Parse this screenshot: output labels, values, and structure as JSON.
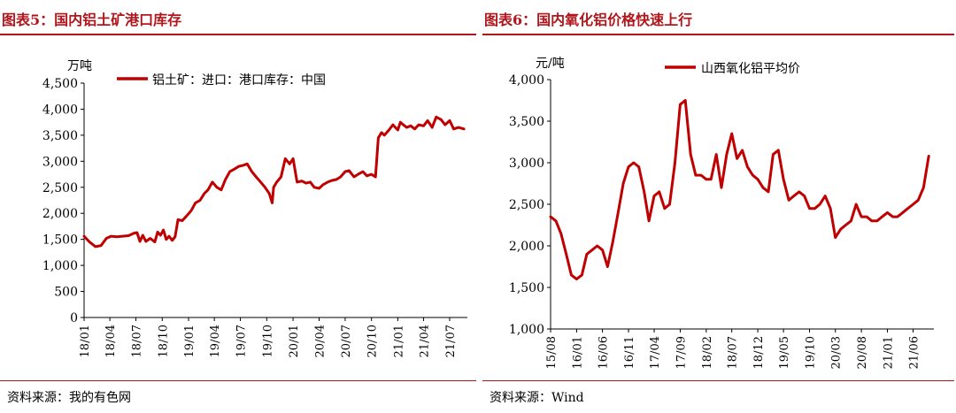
{
  "figures": [
    {
      "title": "图表5：国内铝土矿港口库存",
      "source": "资料来源：我的有色网",
      "chart_data": {
        "type": "line",
        "unit_label": "万吨",
        "legend_position": "top",
        "grid": false,
        "ylim": [
          0,
          4500
        ],
        "yticks": [
          0,
          500,
          1000,
          1500,
          2000,
          2500,
          3000,
          3500,
          4000,
          4500
        ],
        "ytick_labels": [
          "0",
          "500",
          "1,000",
          "1,500",
          "2,000",
          "2,500",
          "3,000",
          "3,500",
          "4,000",
          "4,500"
        ],
        "xlim": [
          "2018-01",
          "2021-09"
        ],
        "xticks": [
          "2018-01",
          "2018-04",
          "2018-07",
          "2018-10",
          "2019-01",
          "2019-04",
          "2019-07",
          "2019-10",
          "2020-01",
          "2020-04",
          "2020-07",
          "2020-10",
          "2021-01",
          "2021-04",
          "2021-07"
        ],
        "xtick_labels": [
          "18/01",
          "18/04",
          "18/07",
          "18/10",
          "19/01",
          "19/04",
          "19/07",
          "19/10",
          "20/01",
          "20/04",
          "20/07",
          "20/10",
          "21/01",
          "21/04",
          "21/07"
        ],
        "series": [
          {
            "name": "铝土矿：进口：港口库存：中国",
            "color": "#c00000",
            "x": [
              "2018-01-01",
              "2018-01-20",
              "2018-02-10",
              "2018-03-01",
              "2018-03-20",
              "2018-04-05",
              "2018-04-25",
              "2018-05-15",
              "2018-06-05",
              "2018-06-25",
              "2018-07-05",
              "2018-07-15",
              "2018-07-25",
              "2018-08-05",
              "2018-08-20",
              "2018-09-05",
              "2018-09-15",
              "2018-09-25",
              "2018-10-05",
              "2018-10-15",
              "2018-10-25",
              "2018-11-05",
              "2018-11-15",
              "2018-11-25",
              "2018-12-10",
              "2018-12-25",
              "2019-01-10",
              "2019-01-25",
              "2019-02-10",
              "2019-02-25",
              "2019-03-10",
              "2019-03-25",
              "2019-04-10",
              "2019-04-25",
              "2019-05-10",
              "2019-05-25",
              "2019-06-10",
              "2019-06-25",
              "2019-07-10",
              "2019-07-25",
              "2019-08-10",
              "2019-08-25",
              "2019-09-10",
              "2019-09-25",
              "2019-10-10",
              "2019-10-20",
              "2019-10-25",
              "2019-11-05",
              "2019-11-20",
              "2019-12-05",
              "2019-12-20",
              "2020-01-01",
              "2020-01-15",
              "2020-02-01",
              "2020-02-15",
              "2020-03-01",
              "2020-03-15",
              "2020-04-01",
              "2020-04-15",
              "2020-05-01",
              "2020-05-15",
              "2020-06-01",
              "2020-06-15",
              "2020-07-01",
              "2020-07-15",
              "2020-08-01",
              "2020-08-15",
              "2020-09-01",
              "2020-09-15",
              "2020-10-01",
              "2020-10-15",
              "2020-10-25",
              "2020-11-05",
              "2020-11-15",
              "2020-12-01",
              "2020-12-15",
              "2021-01-01",
              "2021-01-10",
              "2021-01-20",
              "2021-02-01",
              "2021-02-15",
              "2021-03-01",
              "2021-03-15",
              "2021-04-01",
              "2021-04-15",
              "2021-05-01",
              "2021-05-15",
              "2021-06-01",
              "2021-06-15",
              "2021-07-01",
              "2021-07-15",
              "2021-08-01",
              "2021-08-20"
            ],
            "values": [
              1560,
              1450,
              1360,
              1380,
              1520,
              1560,
              1550,
              1560,
              1570,
              1620,
              1630,
              1460,
              1580,
              1460,
              1520,
              1450,
              1640,
              1580,
              1680,
              1500,
              1560,
              1480,
              1550,
              1880,
              1860,
              1950,
              2050,
              2200,
              2250,
              2380,
              2450,
              2600,
              2500,
              2450,
              2650,
              2800,
              2850,
              2900,
              2920,
              2950,
              2800,
              2700,
              2600,
              2500,
              2380,
              2200,
              2500,
              2600,
              2700,
              3050,
              2950,
              3050,
              2600,
              2620,
              2580,
              2600,
              2500,
              2480,
              2550,
              2600,
              2630,
              2650,
              2700,
              2800,
              2820,
              2700,
              2750,
              2800,
              2720,
              2750,
              2700,
              3450,
              3550,
              3500,
              3600,
              3700,
              3600,
              3750,
              3700,
              3650,
              3680,
              3620,
              3700,
              3680,
              3780,
              3650,
              3850,
              3800,
              3700,
              3780,
              3620,
              3650,
              3620
            ]
          }
        ]
      }
    },
    {
      "title": "图表6：国内氧化铝价格快速上行",
      "source": "资料来源：Wind",
      "chart_data": {
        "type": "line",
        "unit_label": "元/吨",
        "legend_position": "top",
        "grid": false,
        "ylim": [
          1000,
          4000
        ],
        "yticks": [
          1000,
          1500,
          2000,
          2500,
          3000,
          3500,
          4000
        ],
        "ytick_labels": [
          "1,000",
          "1,500",
          "2,000",
          "2,500",
          "3,000",
          "3,500",
          "4,000"
        ],
        "xlim": [
          "2015-08",
          "2021-10"
        ],
        "xticks": [
          "2015-08",
          "2016-01",
          "2016-06",
          "2016-11",
          "2017-04",
          "2017-09",
          "2018-02",
          "2018-07",
          "2018-12",
          "2019-05",
          "2019-10",
          "2020-03",
          "2020-08",
          "2021-01",
          "2021-06"
        ],
        "xtick_labels": [
          "15/08",
          "16/01",
          "16/06",
          "16/11",
          "17/04",
          "17/09",
          "18/02",
          "18/07",
          "18/12",
          "19/05",
          "19/10",
          "20/03",
          "20/08",
          "21/01",
          "21/06"
        ],
        "series": [
          {
            "name": "山西氧化铝平均价",
            "color": "#c00000",
            "x": [
              "2015-08-01",
              "2015-09-01",
              "2015-10-01",
              "2015-11-01",
              "2015-12-01",
              "2016-01-01",
              "2016-02-01",
              "2016-03-01",
              "2016-04-01",
              "2016-05-01",
              "2016-06-01",
              "2016-07-01",
              "2016-08-01",
              "2016-09-01",
              "2016-10-01",
              "2016-11-01",
              "2016-12-01",
              "2017-01-01",
              "2017-02-01",
              "2017-03-01",
              "2017-04-01",
              "2017-05-01",
              "2017-06-01",
              "2017-07-01",
              "2017-08-01",
              "2017-09-01",
              "2017-10-01",
              "2017-11-01",
              "2017-12-01",
              "2018-01-01",
              "2018-02-01",
              "2018-03-01",
              "2018-04-01",
              "2018-05-01",
              "2018-06-01",
              "2018-07-01",
              "2018-08-01",
              "2018-09-01",
              "2018-10-01",
              "2018-11-01",
              "2018-12-01",
              "2019-01-01",
              "2019-02-01",
              "2019-03-01",
              "2019-04-01",
              "2019-05-01",
              "2019-06-01",
              "2019-07-01",
              "2019-08-01",
              "2019-09-01",
              "2019-10-01",
              "2019-11-01",
              "2019-12-01",
              "2020-01-01",
              "2020-02-01",
              "2020-03-01",
              "2020-04-01",
              "2020-05-01",
              "2020-06-01",
              "2020-07-01",
              "2020-08-01",
              "2020-09-01",
              "2020-10-01",
              "2020-11-01",
              "2020-12-01",
              "2021-01-01",
              "2021-02-01",
              "2021-03-01",
              "2021-04-01",
              "2021-05-01",
              "2021-06-01",
              "2021-07-01",
              "2021-08-01",
              "2021-09-01"
            ],
            "values": [
              2350,
              2300,
              2150,
              1900,
              1650,
              1600,
              1650,
              1900,
              1950,
              2000,
              1950,
              1750,
              2050,
              2400,
              2750,
              2950,
              3000,
              2950,
              2650,
              2300,
              2600,
              2650,
              2450,
              2500,
              3000,
              3700,
              3750,
              3100,
              2850,
              2850,
              2800,
              2800,
              3100,
              2700,
              3100,
              3350,
              3050,
              3150,
              2950,
              2850,
              2800,
              2700,
              2650,
              3100,
              3150,
              2800,
              2550,
              2600,
              2650,
              2600,
              2450,
              2450,
              2500,
              2600,
              2450,
              2100,
              2200,
              2250,
              2300,
              2500,
              2350,
              2350,
              2300,
              2300,
              2350,
              2400,
              2350,
              2350,
              2400,
              2450,
              2500,
              2550,
              2700,
              3080
            ]
          }
        ]
      }
    }
  ]
}
